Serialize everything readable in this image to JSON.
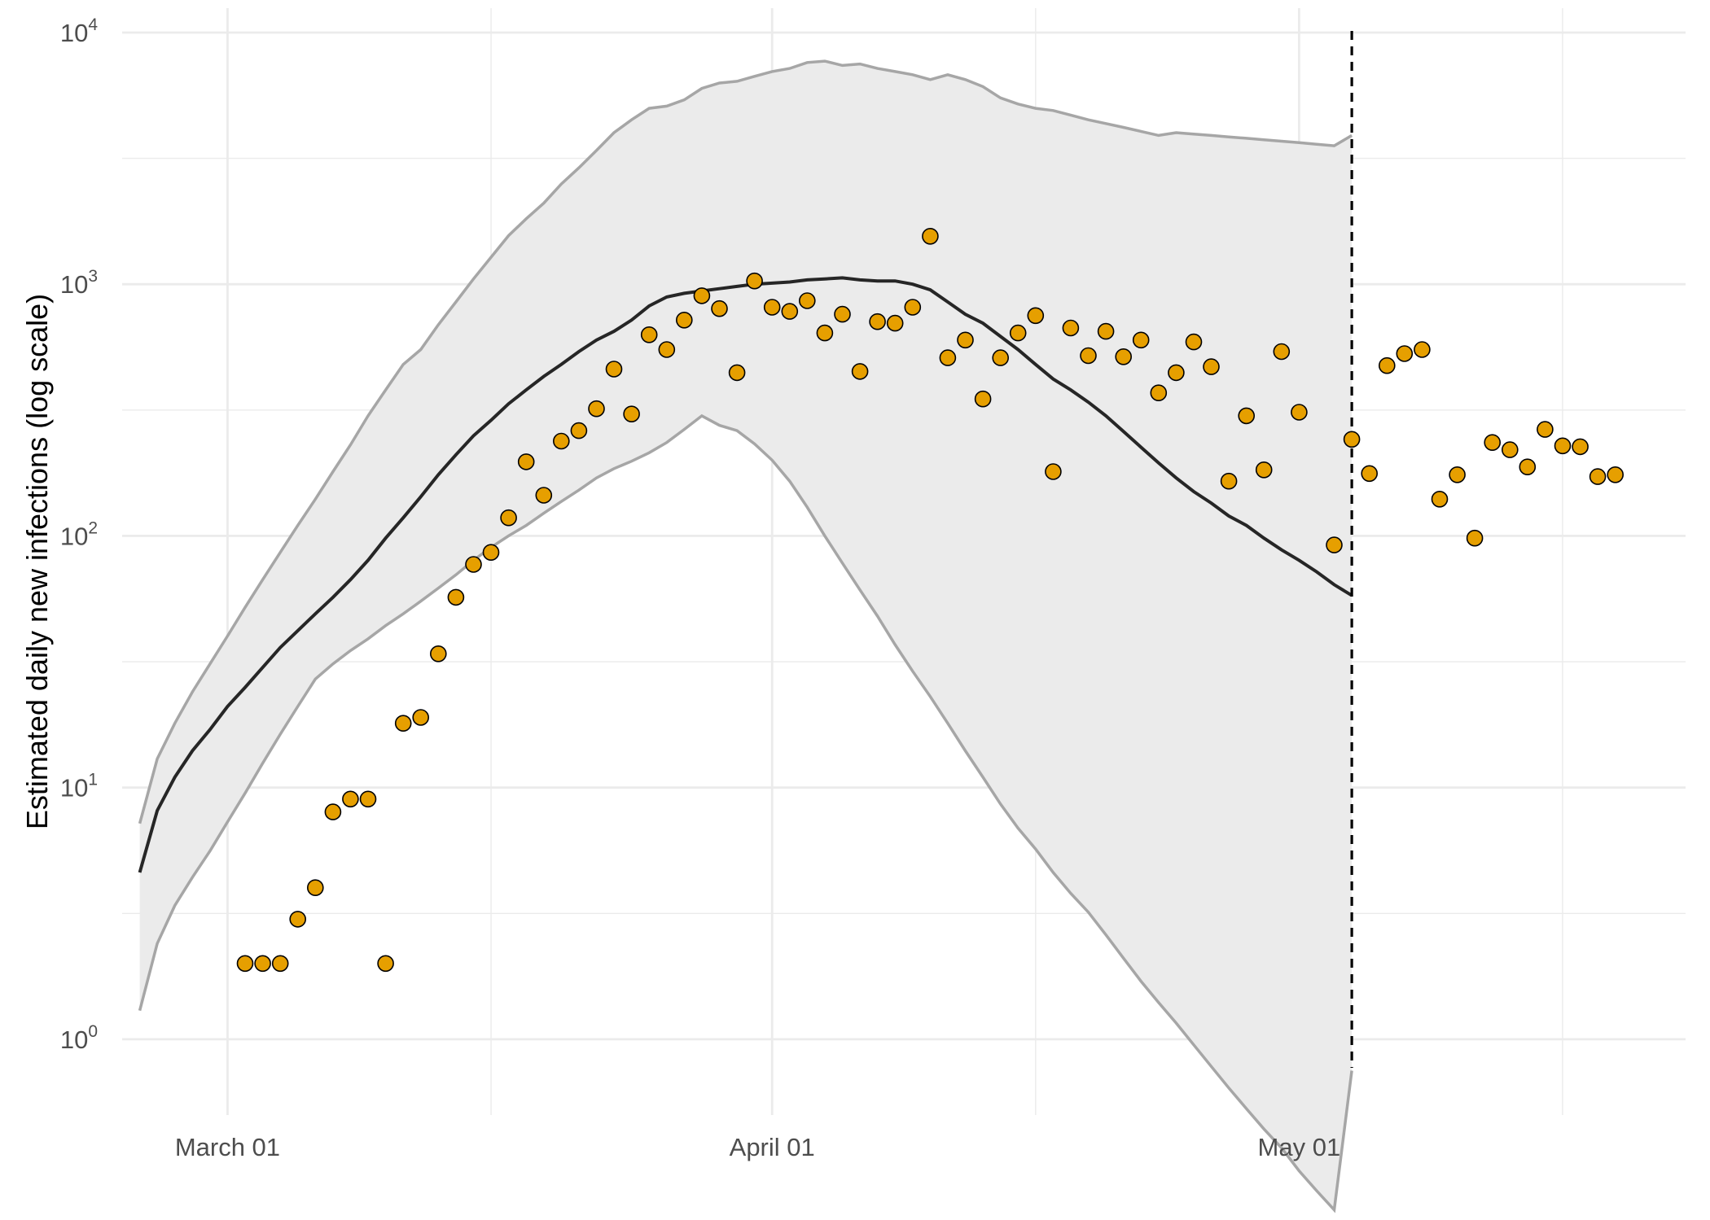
{
  "chart_data": {
    "type": "line",
    "title": "",
    "xlabel": "",
    "ylabel": "Estimated daily new infections (log scale)",
    "y_scale": "log10",
    "ylim": [
      0.5,
      12500
    ],
    "xlim": [
      "2020-02-24",
      "2020-05-23"
    ],
    "grid": true,
    "legend": "none",
    "x_ticks": [
      {
        "date": "2020-03-01",
        "label": "March 01"
      },
      {
        "date": "2020-04-01",
        "label": "April 01"
      },
      {
        "date": "2020-05-01",
        "label": "May 01"
      }
    ],
    "y_ticks": [
      {
        "value": 1,
        "base": "10",
        "exp": "0"
      },
      {
        "value": 10,
        "base": "10",
        "exp": "1"
      },
      {
        "value": 100,
        "base": "10",
        "exp": "2"
      },
      {
        "value": 1000,
        "base": "10",
        "exp": "3"
      },
      {
        "value": 10000,
        "base": "10",
        "exp": "4"
      }
    ],
    "minor_x_dates": [
      "2020-03-16",
      "2020-04-16",
      "2020-05-16"
    ],
    "minor_y_values": [
      3.1623,
      31.623,
      316.23,
      3162.3
    ],
    "x": [
      "2020-02-25",
      "2020-02-26",
      "2020-02-27",
      "2020-02-28",
      "2020-02-29",
      "2020-03-01",
      "2020-03-02",
      "2020-03-03",
      "2020-03-04",
      "2020-03-05",
      "2020-03-06",
      "2020-03-07",
      "2020-03-08",
      "2020-03-09",
      "2020-03-10",
      "2020-03-11",
      "2020-03-12",
      "2020-03-13",
      "2020-03-14",
      "2020-03-15",
      "2020-03-16",
      "2020-03-17",
      "2020-03-18",
      "2020-03-19",
      "2020-03-20",
      "2020-03-21",
      "2020-03-22",
      "2020-03-23",
      "2020-03-24",
      "2020-03-25",
      "2020-03-26",
      "2020-03-27",
      "2020-03-28",
      "2020-03-29",
      "2020-03-30",
      "2020-03-31",
      "2020-04-01",
      "2020-04-02",
      "2020-04-03",
      "2020-04-04",
      "2020-04-05",
      "2020-04-06",
      "2020-04-07",
      "2020-04-08",
      "2020-04-09",
      "2020-04-10",
      "2020-04-11",
      "2020-04-12",
      "2020-04-13",
      "2020-04-14",
      "2020-04-15",
      "2020-04-16",
      "2020-04-17",
      "2020-04-18",
      "2020-04-19",
      "2020-04-20",
      "2020-04-21",
      "2020-04-22",
      "2020-04-23",
      "2020-04-24",
      "2020-04-25",
      "2020-04-26",
      "2020-04-27",
      "2020-04-28",
      "2020-04-29",
      "2020-04-30",
      "2020-05-01",
      "2020-05-02",
      "2020-05-03",
      "2020-05-04"
    ],
    "series": [
      {
        "values": [
          4.6,
          8.1,
          11,
          14,
          17,
          21,
          25,
          30,
          36,
          42,
          49,
          57,
          67,
          80,
          98,
          118,
          143,
          175,
          210,
          250,
          288,
          335,
          380,
          430,
          480,
          540,
          600,
          650,
          720,
          820,
          890,
          920,
          940,
          960,
          980,
          1000,
          1010,
          1020,
          1040,
          1050,
          1060,
          1040,
          1030,
          1030,
          1000,
          950,
          850,
          760,
          700,
          620,
          550,
          480,
          420,
          380,
          340,
          300,
          260,
          225,
          195,
          170,
          150,
          135,
          120,
          110,
          98,
          88,
          80,
          72,
          64,
          58
        ],
        "lower": [
          1.3,
          2.4,
          3.4,
          4.4,
          5.6,
          7.3,
          9.5,
          12.5,
          16.3,
          21,
          27,
          31,
          35,
          39,
          44,
          49,
          55,
          62,
          70,
          80,
          90,
          100,
          110,
          123,
          137,
          152,
          170,
          185,
          198,
          214,
          235,
          265,
          300,
          275,
          262,
          232,
          200,
          165,
          130,
          100,
          78,
          61,
          48,
          37,
          29,
          23,
          18,
          14,
          11,
          8.6,
          6.9,
          5.7,
          4.6,
          3.8,
          3.2,
          2.6,
          2.1,
          1.7,
          1.4,
          1.16,
          0.95,
          0.78,
          0.64,
          0.53,
          0.44,
          0.37,
          0.3,
          0.25,
          0.21,
          0.75
        ],
        "upper": [
          7.2,
          13,
          18,
          24,
          31,
          40,
          52,
          67,
          86,
          110,
          140,
          180,
          230,
          300,
          380,
          480,
          550,
          690,
          850,
          1050,
          1280,
          1560,
          1820,
          2100,
          2500,
          2900,
          3400,
          4000,
          4500,
          5000,
          5100,
          5400,
          6000,
          6300,
          6400,
          6700,
          7000,
          7200,
          7600,
          7700,
          7400,
          7500,
          7200,
          7000,
          6800,
          6500,
          6800,
          6500,
          6100,
          5500,
          5200,
          5000,
          4900,
          4700,
          4500,
          4350,
          4200,
          4050,
          3900,
          4000,
          3950,
          3900,
          3850,
          3800,
          3750,
          3700,
          3650,
          3600,
          3550,
          3900
        ]
      }
    ],
    "observed": {
      "dates": [
        "2020-03-02",
        "2020-03-03",
        "2020-03-04",
        "2020-03-05",
        "2020-03-06",
        "2020-03-07",
        "2020-03-08",
        "2020-03-09",
        "2020-03-10",
        "2020-03-11",
        "2020-03-12",
        "2020-03-13",
        "2020-03-14",
        "2020-03-15",
        "2020-03-16",
        "2020-03-17",
        "2020-03-18",
        "2020-03-19",
        "2020-03-20",
        "2020-03-21",
        "2020-03-22",
        "2020-03-23",
        "2020-03-24",
        "2020-03-25",
        "2020-03-26",
        "2020-03-27",
        "2020-03-28",
        "2020-03-29",
        "2020-03-30",
        "2020-03-31",
        "2020-04-01",
        "2020-04-02",
        "2020-04-03",
        "2020-04-04",
        "2020-04-05",
        "2020-04-06",
        "2020-04-07",
        "2020-04-08",
        "2020-04-09",
        "2020-04-10",
        "2020-04-11",
        "2020-04-12",
        "2020-04-13",
        "2020-04-14",
        "2020-04-15",
        "2020-04-16",
        "2020-04-17",
        "2020-04-18",
        "2020-04-19",
        "2020-04-20",
        "2020-04-21",
        "2020-04-22",
        "2020-04-23",
        "2020-04-24",
        "2020-04-25",
        "2020-04-26",
        "2020-04-27",
        "2020-04-28",
        "2020-04-29",
        "2020-04-30",
        "2020-05-01",
        "2020-05-03",
        "2020-05-04",
        "2020-05-05",
        "2020-05-06",
        "2020-05-07",
        "2020-05-08",
        "2020-05-09",
        "2020-05-10",
        "2020-05-11",
        "2020-05-12",
        "2020-05-13",
        "2020-05-14",
        "2020-05-15",
        "2020-05-16",
        "2020-05-17",
        "2020-05-18",
        "2020-05-19"
      ],
      "values": [
        2,
        2,
        2,
        3,
        4,
        8,
        9,
        9,
        2,
        18,
        19,
        34,
        57,
        77,
        86,
        118,
        197,
        145,
        238,
        262,
        320,
        460,
        305,
        630,
        550,
        720,
        900,
        800,
        445,
        1030,
        810,
        780,
        860,
        640,
        760,
        450,
        710,
        700,
        810,
        1550,
        510,
        600,
        350,
        510,
        640,
        750,
        180,
        670,
        520,
        650,
        515,
        600,
        370,
        445,
        590,
        470,
        165,
        300,
        183,
        540,
        310,
        92,
        242,
        177,
        475,
        530,
        550,
        140,
        175,
        98,
        235,
        220,
        188,
        265,
        228,
        226,
        172,
        175
      ]
    },
    "cutoff_date": "2020-05-04",
    "colors": {
      "band_fill": "#ebebeb",
      "band_edge": "#a6a6a6",
      "median_line": "#262626",
      "point_fill": "#e69f00",
      "point_stroke": "#000000",
      "grid": "#ebebeb",
      "cutoff_line": "#000000"
    }
  }
}
